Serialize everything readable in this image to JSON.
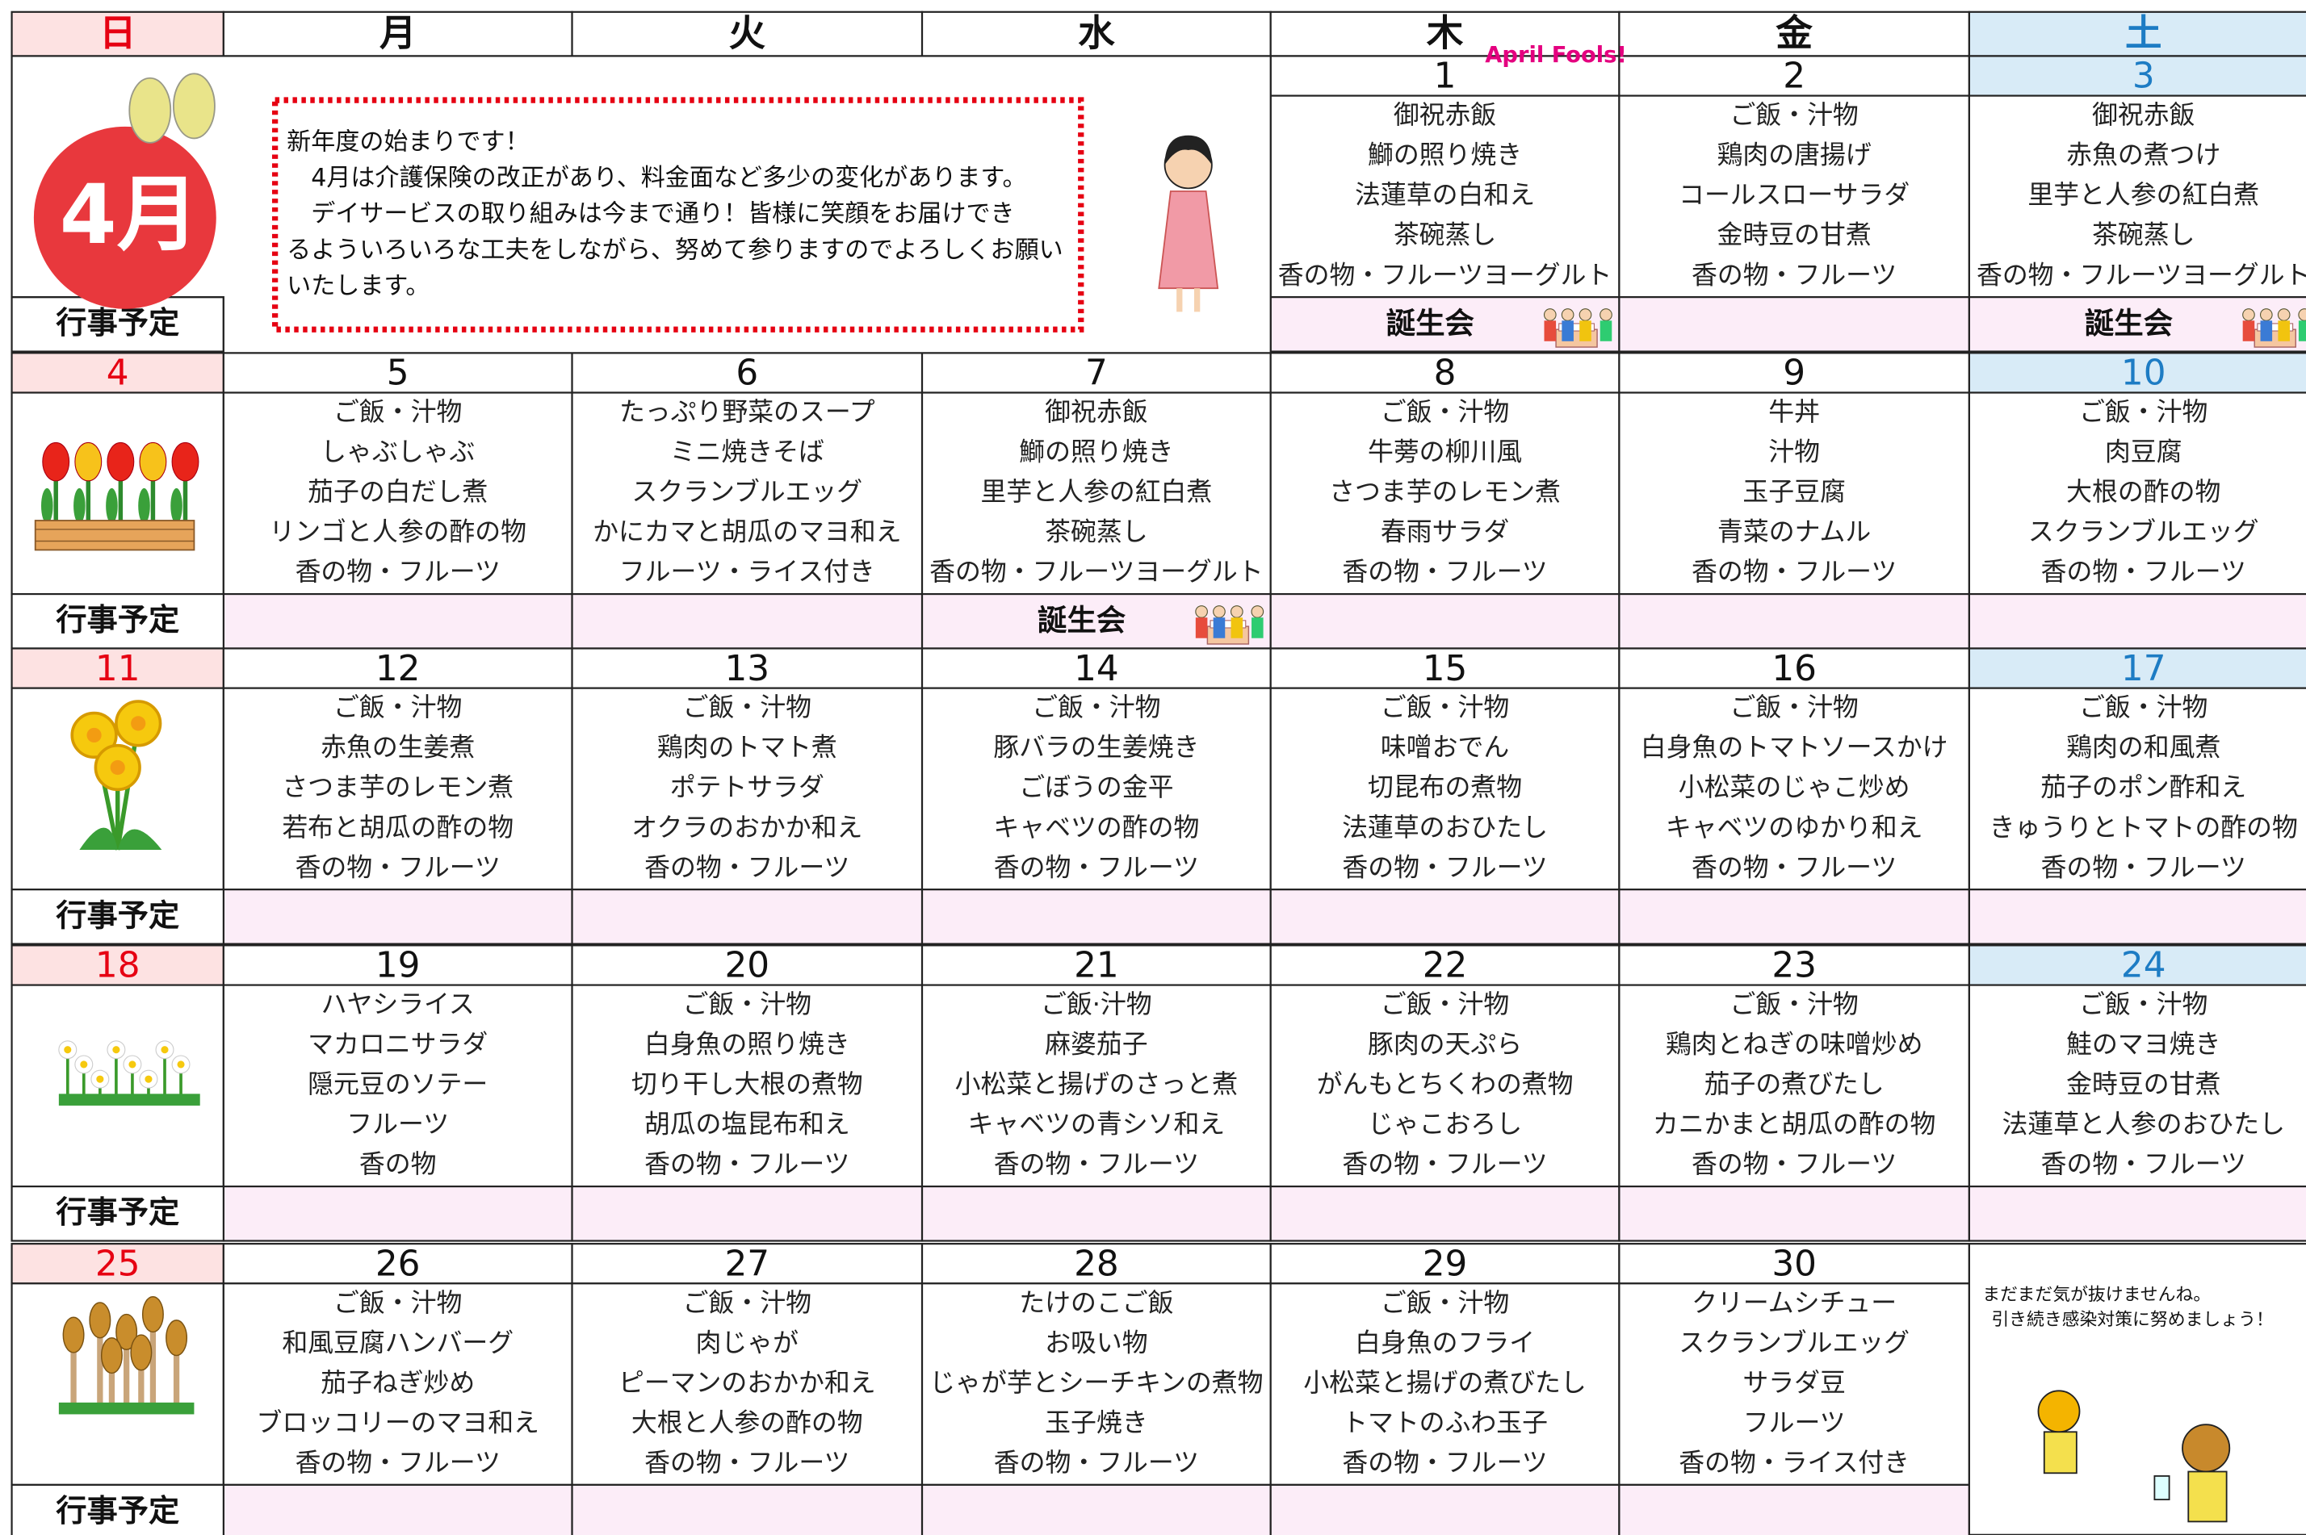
{
  "weekdays": [
    "日",
    "月",
    "火",
    "水",
    "木",
    "金",
    "土"
  ],
  "event_label": "行事予定",
  "badge": "4月",
  "april_fools": "April Fools!",
  "notice": [
    "新年度の始まりです！",
    "　4月は介護保険の改正があり、料金面など多少の変化があります。",
    "　デイサービスの取り組みは今まで通り！皆様に笑顔をお届けでき",
    "るよういろいろな工夫をしながら、努めて参りますのでよろしくお願い",
    "いたします。"
  ],
  "closing_note": [
    "まだまだ気が抜けませんね。",
    "引き続き感染対策に努めましょう！"
  ],
  "weeks": [
    {
      "days": [
        null,
        null,
        null,
        null,
        {
          "date": 1,
          "menu": [
            "御祝赤飯",
            "鰤の照り焼き",
            "法蓮草の白和え",
            "茶碗蒸し",
            "香の物・フルーツヨーグルト"
          ],
          "event": "誕生会"
        },
        {
          "date": 2,
          "menu": [
            "ご飯・汁物",
            "鶏肉の唐揚げ",
            "コールスローサラダ",
            "金時豆の甘煮",
            "香の物・フルーツ"
          ]
        },
        {
          "date": 3,
          "menu": [
            "御祝赤飯",
            "赤魚の煮つけ",
            "里芋と人参の紅白煮",
            "茶碗蒸し",
            "香の物・フルーツヨーグルト"
          ],
          "event": "誕生会"
        }
      ]
    },
    {
      "days": [
        {
          "date": 4
        },
        {
          "date": 5,
          "menu": [
            "ご飯・汁物",
            "しゃぶしゃぶ",
            "茄子の白だし煮",
            "リンゴと人参の酢の物",
            "香の物・フルーツ"
          ]
        },
        {
          "date": 6,
          "menu": [
            "たっぷり野菜のスープ",
            "ミニ焼きそば",
            "スクランブルエッグ",
            "かにカマと胡瓜のマヨ和え",
            "フルーツ・ライス付き"
          ]
        },
        {
          "date": 7,
          "menu": [
            "御祝赤飯",
            "鰤の照り焼き",
            "里芋と人参の紅白煮",
            "茶碗蒸し",
            "香の物・フルーツヨーグルト"
          ],
          "event": "誕生会"
        },
        {
          "date": 8,
          "menu": [
            "ご飯・汁物",
            "牛蒡の柳川風",
            "さつま芋のレモン煮",
            "春雨サラダ",
            "香の物・フルーツ"
          ]
        },
        {
          "date": 9,
          "menu": [
            "牛丼",
            "汁物",
            "玉子豆腐",
            "青菜のナムル",
            "香の物・フルーツ"
          ]
        },
        {
          "date": 10,
          "menu": [
            "ご飯・汁物",
            "肉豆腐",
            "大根の酢の物",
            "スクランブルエッグ",
            "香の物・フルーツ"
          ]
        }
      ]
    },
    {
      "days": [
        {
          "date": 11
        },
        {
          "date": 12,
          "menu": [
            "ご飯・汁物",
            "赤魚の生姜煮",
            "さつま芋のレモン煮",
            "若布と胡瓜の酢の物",
            "香の物・フルーツ"
          ]
        },
        {
          "date": 13,
          "menu": [
            "ご飯・汁物",
            "鶏肉のトマト煮",
            "ポテトサラダ",
            "オクラのおかか和え",
            "香の物・フルーツ"
          ]
        },
        {
          "date": 14,
          "menu": [
            "ご飯・汁物",
            "豚バラの生姜焼き",
            "ごぼうの金平",
            "キャベツの酢の物",
            "香の物・フルーツ"
          ]
        },
        {
          "date": 15,
          "menu": [
            "ご飯・汁物",
            "味噌おでん",
            "切昆布の煮物",
            "法蓮草のおひたし",
            "香の物・フルーツ"
          ]
        },
        {
          "date": 16,
          "menu": [
            "ご飯・汁物",
            "白身魚のトマトソースかけ",
            "小松菜のじゃこ炒め",
            "キャベツのゆかり和え",
            "香の物・フルーツ"
          ]
        },
        {
          "date": 17,
          "menu": [
            "ご飯・汁物",
            "鶏肉の和風煮",
            "茄子のポン酢和え",
            "きゅうりとトマトの酢の物",
            "香の物・フルーツ"
          ]
        }
      ]
    },
    {
      "days": [
        {
          "date": 18
        },
        {
          "date": 19,
          "menu": [
            "ハヤシライス",
            "マカロニサラダ",
            "隠元豆のソテー",
            "フルーツ",
            "香の物"
          ]
        },
        {
          "date": 20,
          "menu": [
            "ご飯・汁物",
            "白身魚の照り焼き",
            "切り干し大根の煮物",
            "胡瓜の塩昆布和え",
            "香の物・フルーツ"
          ]
        },
        {
          "date": 21,
          "menu": [
            "ご飯·汁物",
            "麻婆茄子",
            "小松菜と揚げのさっと煮",
            "キャベツの青シソ和え",
            "香の物・フルーツ"
          ]
        },
        {
          "date": 22,
          "menu": [
            "ご飯・汁物",
            "豚肉の天ぷら",
            "がんもとちくわの煮物",
            "じゃこおろし",
            "香の物・フルーツ"
          ]
        },
        {
          "date": 23,
          "menu": [
            "ご飯・汁物",
            "鶏肉とねぎの味噌炒め",
            "茄子の煮びたし",
            "カニかまと胡瓜の酢の物",
            "香の物・フルーツ"
          ]
        },
        {
          "date": 24,
          "menu": [
            "ご飯・汁物",
            "鮭のマヨ焼き",
            "金時豆の甘煮",
            "法蓮草と人参のおひたし",
            "香の物・フルーツ"
          ]
        }
      ]
    },
    {
      "days": [
        {
          "date": 25
        },
        {
          "date": 26,
          "menu": [
            "ご飯・汁物",
            "和風豆腐ハンバーグ",
            "茄子ねぎ炒め",
            "ブロッコリーのマヨ和え",
            "香の物・フルーツ"
          ]
        },
        {
          "date": 27,
          "menu": [
            "ご飯・汁物",
            "肉じゃが",
            "ピーマンのおかか和え",
            "大根と人参の酢の物",
            "香の物・フルーツ"
          ]
        },
        {
          "date": 28,
          "menu": [
            "たけのこご飯",
            "お吸い物",
            "じゃが芋とシーチキンの煮物",
            "玉子焼き",
            "香の物・フルーツ"
          ]
        },
        {
          "date": 29,
          "menu": [
            "ご飯・汁物",
            "白身魚のフライ",
            "小松菜と揚げの煮びたし",
            "トマトのふわ玉子",
            "香の物・フルーツ"
          ]
        },
        {
          "date": 30,
          "menu": [
            "クリームシチュー",
            "スクランブルエッグ",
            "サラダ豆",
            "フルーツ",
            "香の物・ライス付き"
          ]
        },
        null
      ]
    }
  ]
}
